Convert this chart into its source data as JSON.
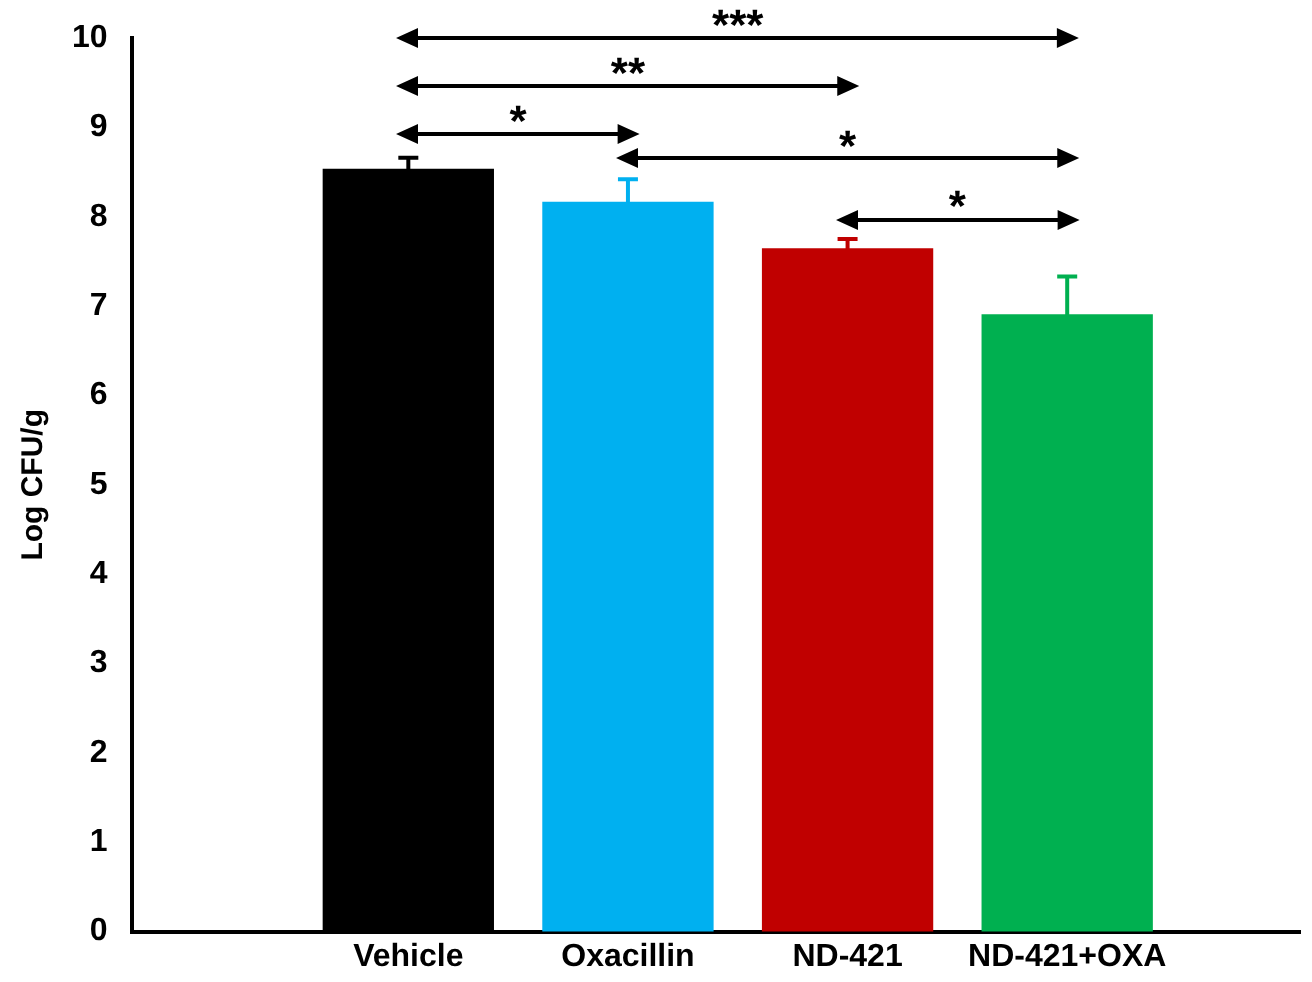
{
  "chart_data": {
    "type": "bar",
    "ylabel": "Log CFU/g",
    "categories": [
      "Vehicle",
      "Oxacillin",
      "ND-421",
      "ND-421+OXA"
    ],
    "values": [
      8.53,
      8.16,
      7.64,
      6.9
    ],
    "colors": [
      "#000000",
      "#00b0f0",
      "#c00000",
      "#00b050"
    ],
    "errors": [
      [
        8.53,
        8.66
      ],
      [
        8.16,
        8.42
      ],
      [
        7.64,
        7.75
      ],
      [
        6.9,
        7.33
      ]
    ],
    "ylim": [
      0,
      10
    ],
    "yticks": [
      0,
      1,
      2,
      3,
      4,
      5,
      6,
      7,
      8,
      9,
      10
    ],
    "grid": false,
    "legend": false,
    "annotations": [
      "***",
      "**",
      "*",
      "*",
      "*"
    ]
  }
}
